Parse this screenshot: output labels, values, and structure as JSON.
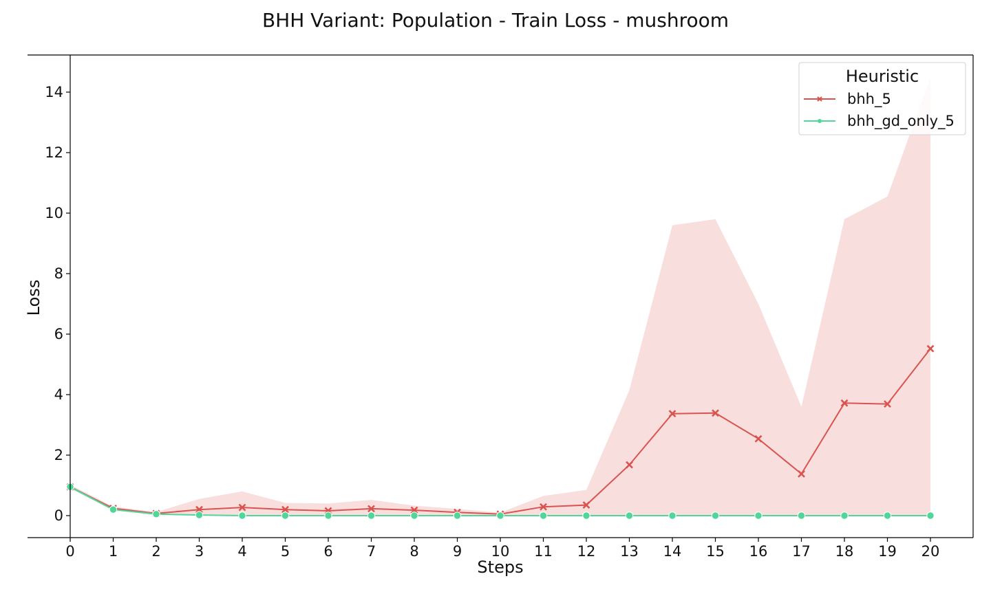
{
  "colors": {
    "bhh_5": "#d9534f",
    "bhh_5_band": "#f4c2c2",
    "bhh_gd_only_5": "#4fd698",
    "axis": "#000000"
  },
  "chart_data": {
    "type": "line",
    "title": "BHH Variant: Population - Train Loss - mushroom",
    "xlabel": "Steps",
    "ylabel": "Loss",
    "xlim": [
      -1,
      21
    ],
    "ylim": [
      -0.7,
      15.3
    ],
    "x": [
      0,
      1,
      2,
      3,
      4,
      5,
      6,
      7,
      8,
      9,
      10,
      11,
      12,
      13,
      14,
      15,
      16,
      17,
      18,
      19,
      20
    ],
    "xticks": [
      "0",
      "1",
      "2",
      "3",
      "4",
      "5",
      "6",
      "7",
      "8",
      "9",
      "10",
      "11",
      "12",
      "13",
      "14",
      "15",
      "16",
      "17",
      "18",
      "19",
      "20"
    ],
    "yticks": [
      0,
      2,
      4,
      6,
      8,
      10,
      12,
      14
    ],
    "grid": false,
    "legend": {
      "title": "Heuristic",
      "placement": "top-right"
    },
    "series": [
      {
        "name": "bhh_5",
        "marker": "x",
        "values": [
          0.95,
          0.24,
          0.07,
          0.2,
          0.27,
          0.2,
          0.16,
          0.23,
          0.18,
          0.11,
          0.05,
          0.29,
          0.35,
          1.68,
          3.37,
          3.39,
          2.54,
          1.38,
          3.72,
          3.69,
          5.52
        ],
        "band_lower": [
          0.9,
          0.18,
          0.02,
          0.02,
          0.02,
          0.02,
          0.02,
          0.02,
          0.02,
          0.02,
          0.01,
          0.01,
          0.01,
          0.01,
          0.01,
          0.01,
          0.01,
          0.01,
          0.01,
          0.01,
          0.01
        ],
        "band_upper": [
          1.02,
          0.3,
          0.12,
          0.55,
          0.8,
          0.42,
          0.4,
          0.52,
          0.33,
          0.22,
          0.1,
          0.65,
          0.85,
          4.15,
          9.6,
          9.8,
          7.0,
          3.6,
          9.8,
          10.55,
          14.5
        ]
      },
      {
        "name": "bhh_gd_only_5",
        "marker": "o",
        "values": [
          0.95,
          0.2,
          0.05,
          0.02,
          0.0,
          0.0,
          0.0,
          0.0,
          0.0,
          0.0,
          0.0,
          0.0,
          0.0,
          0.0,
          0.0,
          0.0,
          0.0,
          0.0,
          0.0,
          0.0,
          0.0
        ],
        "band_lower": [
          0.9,
          0.17,
          0.03,
          0.01,
          0.0,
          0.0,
          0.0,
          0.0,
          0.0,
          0.0,
          0.0,
          0.0,
          0.0,
          0.0,
          0.0,
          0.0,
          0.0,
          0.0,
          0.0,
          0.0,
          0.0
        ],
        "band_upper": [
          1.0,
          0.23,
          0.07,
          0.03,
          0.01,
          0.01,
          0.01,
          0.01,
          0.01,
          0.01,
          0.01,
          0.01,
          0.01,
          0.01,
          0.01,
          0.01,
          0.01,
          0.01,
          0.01,
          0.01,
          0.01
        ]
      }
    ]
  }
}
